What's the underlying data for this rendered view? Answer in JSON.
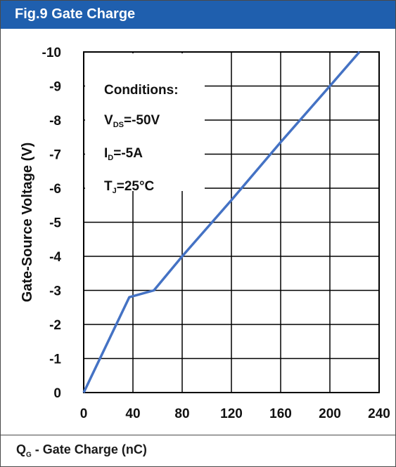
{
  "header": {
    "title": "Fig.9 Gate Charge"
  },
  "footer": {
    "q": "Q",
    "q_sub": "G",
    "rest": " - Gate Charge (nC)"
  },
  "conditions": {
    "heading": "Conditions:",
    "lines": [
      {
        "main": "V",
        "sub": "DS",
        "rest": "=-50V"
      },
      {
        "main": "I",
        "sub": "D",
        "rest": "=-5A"
      },
      {
        "main": "T",
        "sub": "J",
        "rest": "=25°C"
      }
    ]
  },
  "colors": {
    "header_bg": "#1f5fae",
    "line": "#4472c4",
    "grid": "#000000"
  },
  "chart_data": {
    "type": "line",
    "title": "",
    "xlabel": "",
    "ylabel": "Gate-Source Voltage (V)",
    "xlim": [
      0,
      240
    ],
    "ylim": [
      0,
      -10
    ],
    "x_ticks": [
      "0",
      "40",
      "80",
      "120",
      "160",
      "200",
      "240"
    ],
    "y_ticks": [
      "0",
      "-1",
      "-2",
      "-3",
      "-4",
      "-5",
      "-6",
      "-7",
      "-8",
      "-9",
      "-10"
    ],
    "grid": true,
    "series": [
      {
        "x": [
          0,
          37,
          57,
          80,
          120,
          160,
          200,
          224
        ],
        "y": [
          0,
          -2.8,
          -3.0,
          -4.0,
          -5.65,
          -7.35,
          -9.0,
          -10.0
        ]
      }
    ]
  }
}
